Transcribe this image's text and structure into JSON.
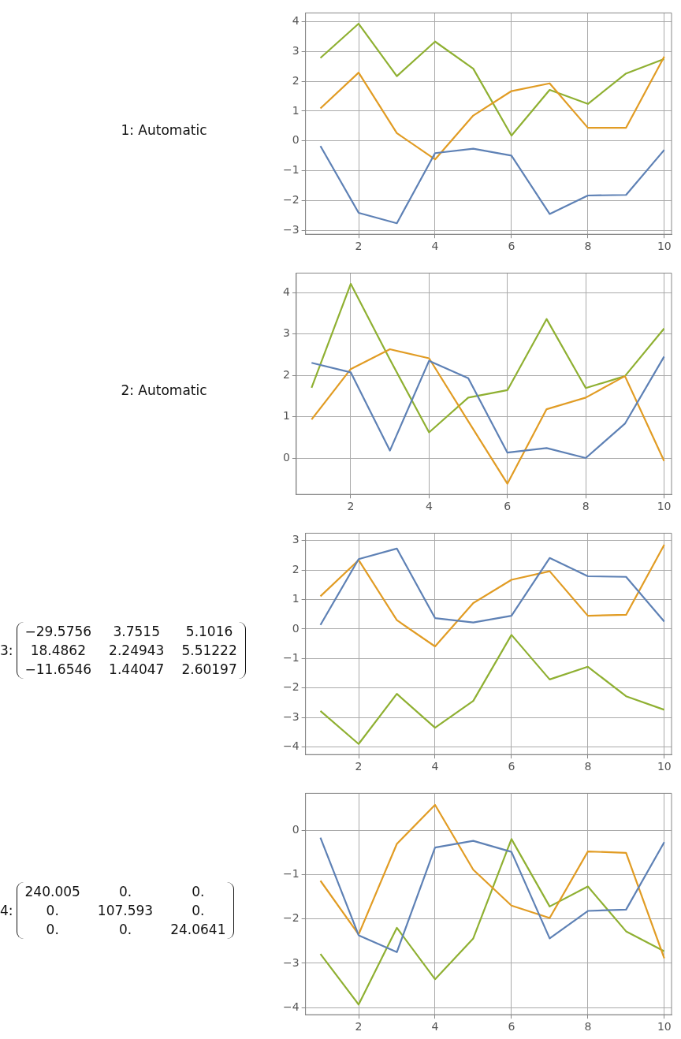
{
  "chart_data": [
    {
      "type": "line",
      "annotations": [
        "1: Automatic"
      ],
      "x": [
        1,
        2,
        3,
        4,
        5,
        6,
        7,
        8,
        9,
        10
      ],
      "xlim": [
        0.61,
        10.19
      ],
      "xticks": [
        2,
        4,
        6,
        8,
        10
      ],
      "ylim": [
        -3.13,
        4.29
      ],
      "yticks": [
        -3,
        -2,
        -1,
        0,
        1,
        2,
        3,
        4
      ],
      "grid": true,
      "legend": false,
      "marker": "none",
      "line_style": "solid",
      "series": [
        {
          "color": "#5e81b5",
          "values": [
            -0.17,
            -2.41,
            -2.76,
            -0.41,
            -0.26,
            -0.49,
            -2.45,
            -1.83,
            -1.81,
            -0.3
          ]
        },
        {
          "color": "#e19c24",
          "values": [
            1.09,
            2.29,
            0.26,
            -0.62,
            0.85,
            1.67,
            1.93,
            0.44,
            0.44,
            2.83
          ]
        },
        {
          "color": "#8fb032",
          "values": [
            2.78,
            3.93,
            2.17,
            3.33,
            2.42,
            0.18,
            1.71,
            1.24,
            2.26,
            2.75
          ]
        }
      ]
    },
    {
      "type": "line",
      "annotations": [
        "2: Automatic"
      ],
      "x": [
        1,
        2,
        3,
        4,
        5,
        6,
        7,
        8,
        9,
        10
      ],
      "xlim": [
        0.61,
        10.19
      ],
      "xticks": [
        2,
        4,
        6,
        8,
        10
      ],
      "ylim": [
        -0.88,
        4.47
      ],
      "yticks": [
        0,
        1,
        2,
        3,
        4
      ],
      "grid": true,
      "legend": false,
      "marker": "none",
      "line_style": "solid",
      "series": [
        {
          "color": "#5e81b5",
          "values": [
            2.3,
            2.07,
            0.18,
            2.35,
            1.93,
            0.13,
            0.24,
            0.0,
            0.83,
            2.45
          ]
        },
        {
          "color": "#e19c24",
          "values": [
            0.93,
            2.15,
            2.63,
            2.41,
            0.89,
            -0.62,
            1.18,
            1.46,
            1.98,
            -0.07
          ]
        },
        {
          "color": "#8fb032",
          "values": [
            1.7,
            4.21,
            2.38,
            0.62,
            1.46,
            1.64,
            3.36,
            1.69,
            1.98,
            3.13
          ]
        }
      ]
    },
    {
      "type": "line",
      "annotations": [
        "3:",
        "−29.5756",
        "3.7515",
        "5.1016",
        "18.4862",
        "2.24943",
        "5.51222",
        "−11.6546",
        "1.44047",
        "2.60197"
      ],
      "x": [
        1,
        2,
        3,
        4,
        5,
        6,
        7,
        8,
        9,
        10
      ],
      "xlim": [
        0.61,
        10.19
      ],
      "xticks": [
        2,
        4,
        6,
        8,
        10
      ],
      "ylim": [
        -4.26,
        3.25
      ],
      "yticks": [
        -4,
        -3,
        -2,
        -1,
        0,
        1,
        2,
        3
      ],
      "grid": true,
      "legend": false,
      "marker": "none",
      "line_style": "solid",
      "series": [
        {
          "color": "#5e81b5",
          "values": [
            0.14,
            2.37,
            2.73,
            0.37,
            0.22,
            0.45,
            2.41,
            1.79,
            1.77,
            0.25
          ]
        },
        {
          "color": "#e19c24",
          "values": [
            1.11,
            2.34,
            0.3,
            -0.59,
            0.88,
            1.67,
            1.96,
            0.45,
            0.48,
            2.86
          ]
        },
        {
          "color": "#8fb032",
          "values": [
            -2.78,
            -3.9,
            -2.2,
            -3.35,
            -2.44,
            -0.2,
            -1.71,
            -1.28,
            -2.28,
            -2.74
          ]
        }
      ]
    },
    {
      "type": "line",
      "annotations": [
        "4:",
        "240.005",
        "0.",
        "0.",
        "0.",
        "107.593",
        "0.",
        "0.",
        "0.",
        "24.0641"
      ],
      "x": [
        1,
        2,
        3,
        4,
        5,
        6,
        7,
        8,
        9,
        10
      ],
      "xlim": [
        0.61,
        10.19
      ],
      "xticks": [
        2,
        4,
        6,
        8,
        10
      ],
      "ylim": [
        -4.16,
        0.83
      ],
      "yticks": [
        -4,
        -3,
        -2,
        -1,
        0
      ],
      "grid": true,
      "legend": false,
      "marker": "none",
      "line_style": "solid",
      "series": [
        {
          "color": "#5e81b5",
          "values": [
            -0.17,
            -2.37,
            -2.75,
            -0.39,
            -0.24,
            -0.49,
            -2.44,
            -1.82,
            -1.79,
            -0.27
          ]
        },
        {
          "color": "#e19c24",
          "values": [
            -1.14,
            -2.35,
            -0.31,
            0.57,
            -0.89,
            -1.7,
            -1.98,
            -0.48,
            -0.51,
            -2.89
          ]
        },
        {
          "color": "#8fb032",
          "values": [
            -2.79,
            -3.93,
            -2.2,
            -3.36,
            -2.44,
            -0.2,
            -1.72,
            -1.27,
            -2.28,
            -2.73
          ]
        }
      ]
    }
  ]
}
